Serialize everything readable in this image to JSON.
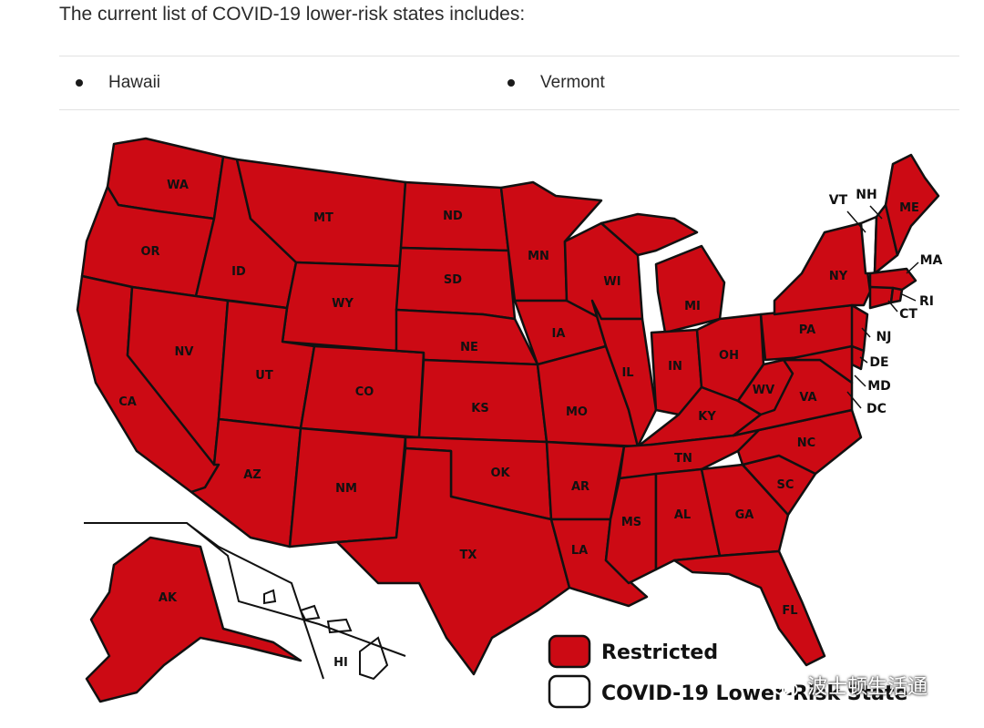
{
  "intro": {
    "text": "The current list of COVID-19 lower-risk states includes:"
  },
  "lower_risk_states": [
    "Hawaii",
    "Vermont"
  ],
  "map": {
    "colors": {
      "restricted": "#cc0a14",
      "lower_risk": "#ffffff",
      "border": "#111111"
    },
    "labels": {
      "WA": "WA",
      "OR": "OR",
      "CA": "CA",
      "ID": "ID",
      "NV": "NV",
      "MT": "MT",
      "WY": "WY",
      "UT": "UT",
      "AZ": "AZ",
      "CO": "CO",
      "NM": "NM",
      "ND": "ND",
      "SD": "SD",
      "NE": "NE",
      "KS": "KS",
      "OK": "OK",
      "TX": "TX",
      "MN": "MN",
      "IA": "IA",
      "MO": "MO",
      "AR": "AR",
      "LA": "LA",
      "WI": "WI",
      "IL": "IL",
      "MS": "MS",
      "MI": "MI",
      "IN": "IN",
      "KY": "KY",
      "TN": "TN",
      "AL": "AL",
      "OH": "OH",
      "GA": "GA",
      "FL": "FL",
      "SC": "SC",
      "NC": "NC",
      "VA": "VA",
      "WV": "WV",
      "PA": "PA",
      "NY": "NY",
      "ME": "ME",
      "AK": "AK",
      "HI": "HI",
      "VT": "VT",
      "NH": "NH",
      "MA": "MA",
      "RI": "RI",
      "CT": "CT",
      "NJ": "NJ",
      "DE": "DE",
      "MD": "MD",
      "DC": "DC"
    },
    "legend": {
      "restricted": "Restricted",
      "lower_risk": "COVID-19 Lower-Risk State"
    }
  },
  "watermark": {
    "text": "波士顿生活通"
  }
}
